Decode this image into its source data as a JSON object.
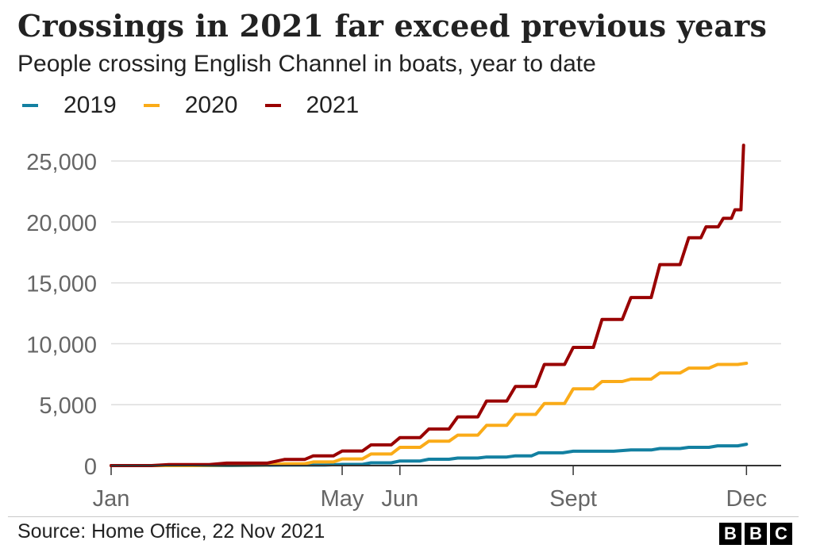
{
  "title": "Crossings in 2021 far exceed previous years",
  "subtitle": "People crossing English Channel in boats, year to date",
  "source": "Source: Home Office, 22 Nov 2021",
  "logo_letters": [
    "B",
    "B",
    "C"
  ],
  "colors": {
    "2019": "#1380A1",
    "2020": "#FAAB18",
    "2021": "#990000",
    "grid": "#dddddd",
    "axis": "#333333",
    "text": "#222222",
    "tick_text": "#666666"
  },
  "chart_data": {
    "type": "line",
    "title": "Crossings in 2021 far exceed previous years",
    "subtitle": "People crossing English Channel in boats, year to date",
    "xlabel": "",
    "ylabel": "",
    "x_unit": "month (1 = 1 Jan, 12 = 1 Dec)",
    "x_range": [
      1,
      12.6
    ],
    "ylim": [
      0,
      26500
    ],
    "y_ticks": [
      0,
      5000,
      10000,
      15000,
      20000,
      25000
    ],
    "y_tick_labels": [
      "0",
      "5,000",
      "10,000",
      "15,000",
      "20,000",
      "25,000"
    ],
    "x_ticks": [
      1,
      5,
      6,
      9,
      12
    ],
    "x_tick_labels": [
      "Jan",
      "May",
      "Jun",
      "Sept",
      "Dec"
    ],
    "grid": true,
    "legend_position": "top-left",
    "series": [
      {
        "name": "2019",
        "color": "#1380A1",
        "x": [
          1.0,
          4.0,
          5.0,
          5.5,
          6.0,
          6.5,
          7.0,
          7.5,
          8.0,
          8.4,
          9.0,
          10.0,
          10.5,
          11.0,
          11.5,
          12.0
        ],
        "y": [
          0,
          40,
          100,
          230,
          380,
          520,
          620,
          700,
          800,
          1050,
          1180,
          1280,
          1400,
          1500,
          1620,
          1750
        ]
      },
      {
        "name": "2020",
        "color": "#FAAB18",
        "x": [
          1.0,
          3.0,
          4.0,
          4.5,
          5.0,
          5.5,
          6.0,
          6.5,
          7.0,
          7.5,
          8.0,
          8.5,
          9.0,
          9.5,
          10.0,
          10.5,
          11.0,
          11.5,
          12.0
        ],
        "y": [
          0,
          50,
          150,
          300,
          550,
          950,
          1500,
          2000,
          2500,
          3300,
          4200,
          5100,
          6300,
          6900,
          7100,
          7600,
          8000,
          8300,
          8400
        ]
      },
      {
        "name": "2021",
        "color": "#990000",
        "x": [
          1.0,
          2.0,
          3.0,
          4.0,
          4.5,
          5.0,
          5.5,
          6.0,
          6.5,
          7.0,
          7.5,
          8.0,
          8.5,
          9.0,
          9.5,
          10.0,
          10.5,
          11.0,
          11.3,
          11.6,
          11.8,
          11.95
        ],
        "y": [
          0,
          80,
          200,
          500,
          800,
          1200,
          1700,
          2300,
          3000,
          4000,
          5300,
          6500,
          8300,
          9700,
          12000,
          13800,
          16500,
          18700,
          19600,
          20300,
          21000,
          26300
        ]
      }
    ]
  }
}
